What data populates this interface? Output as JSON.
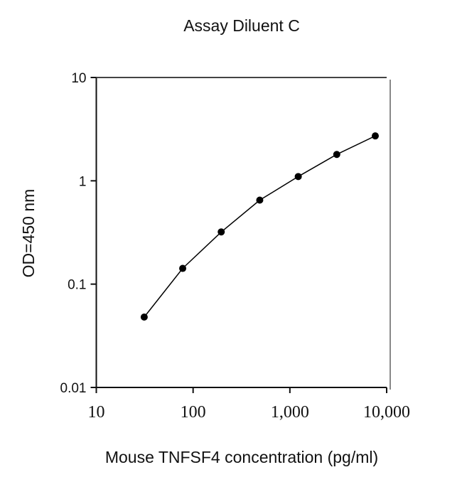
{
  "chart_data": {
    "type": "line",
    "title": "Assay Diluent C",
    "xlabel": "Mouse TNFSF4 concentration (pg/ml)",
    "ylabel": "OD=450 nm",
    "xscale": "log",
    "yscale": "log",
    "xlim": [
      10,
      10000
    ],
    "ylim": [
      0.01,
      10
    ],
    "xticks": [
      10,
      100,
      1000,
      10000
    ],
    "xtick_labels": [
      "10",
      "100",
      "1,000",
      "10,000"
    ],
    "yticks": [
      10,
      1,
      0.1,
      0.01
    ],
    "ytick_labels": [
      "10",
      "1",
      "0.1",
      "0.01"
    ],
    "grid": false,
    "series": [
      {
        "name": "Assay Diluent C",
        "marker": "circle",
        "color": "#000000",
        "x": [
          31.25,
          78.1,
          195.3,
          488.3,
          1220.7,
          3051.8,
          7629.4
        ],
        "y": [
          0.048,
          0.142,
          0.32,
          0.65,
          1.1,
          1.8,
          2.72
        ]
      }
    ]
  }
}
